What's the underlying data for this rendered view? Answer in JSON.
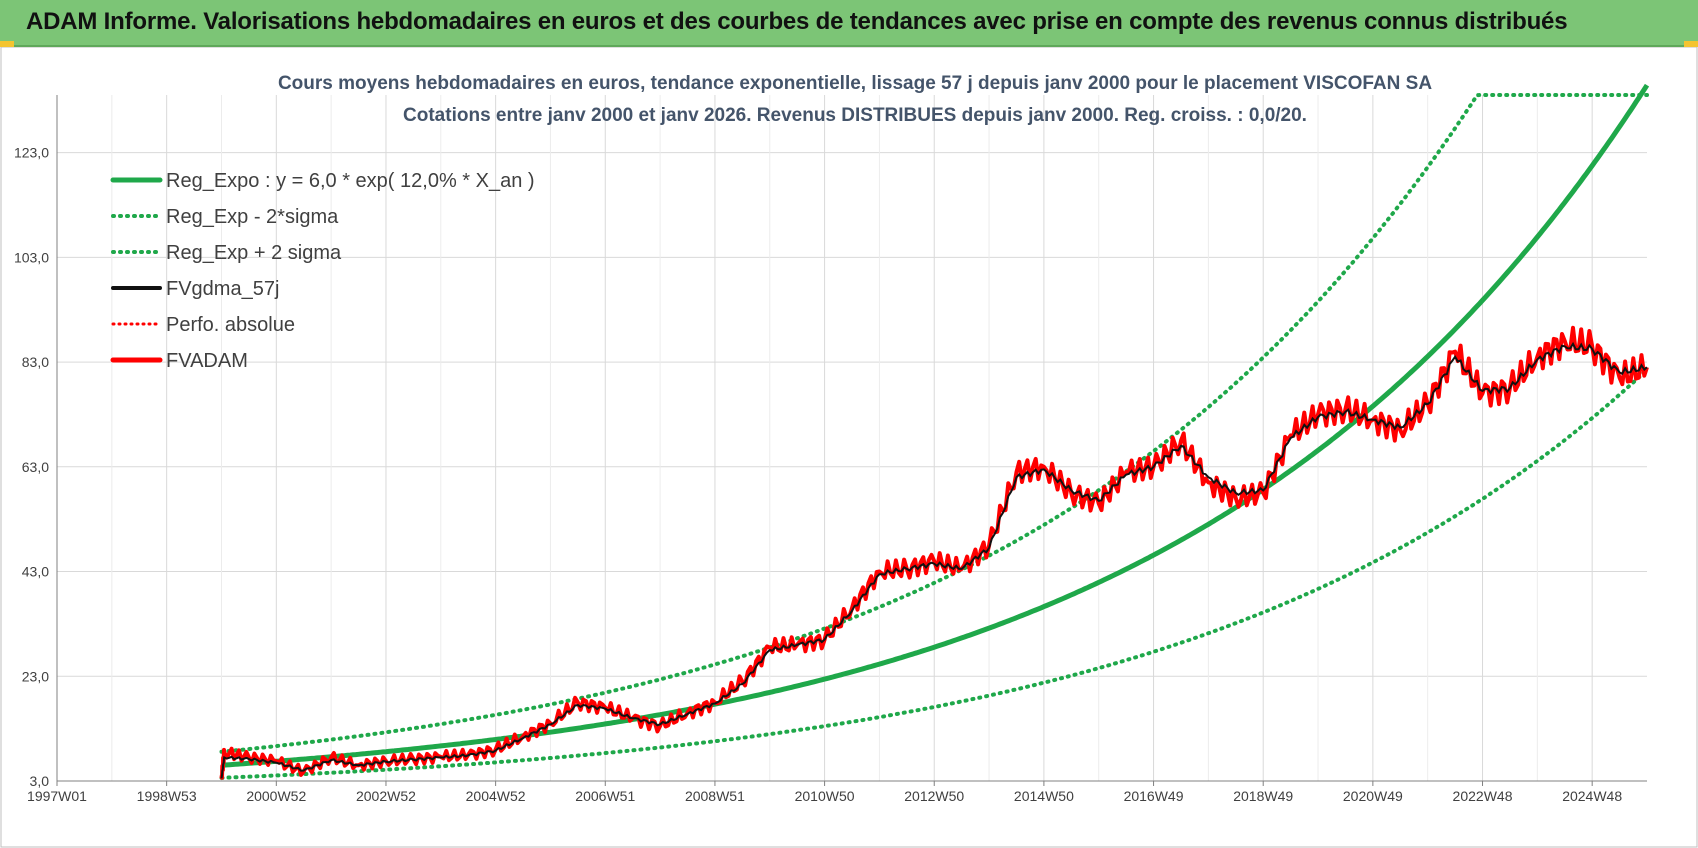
{
  "header": {
    "title": "ADAM Informe. Valorisations hebdomadaires en euros et des courbes de tendances avec prise en compte des revenus connus distribués"
  },
  "colors": {
    "banner": "#7cc576",
    "trend_green": "#1fa84a",
    "price_red": "#ff0000",
    "smooth_black": "#111111",
    "grid": "#d9d9d9"
  },
  "chart_data": {
    "type": "line",
    "title": [
      "Cours moyens hebdomadaires en euros, tendance exponentielle, lissage 57 j depuis janv 2000 pour le placement VISCOFAN SA",
      "Cotations entre janv 2000 et janv 2026. Revenus DISTRIBUES depuis janv 2000. Reg. croiss. : 0,0/20."
    ],
    "xlabel": "",
    "ylabel": "",
    "x_ticks": [
      "1997W01",
      "1998W53",
      "2000W52",
      "2002W52",
      "2004W52",
      "2006W51",
      "2008W51",
      "2010W50",
      "2012W50",
      "2014W50",
      "2016W49",
      "2018W49",
      "2020W49",
      "2022W48",
      "2024W48"
    ],
    "x_tick_years": [
      1997.0,
      1999.0,
      2001.0,
      2003.0,
      2005.0,
      2007.0,
      2009.0,
      2011.0,
      2013.0,
      2015.0,
      2017.0,
      2019.0,
      2021.0,
      2023.0,
      2025.0
    ],
    "xlim": [
      1997.0,
      2026.0
    ],
    "y_ticks": [
      "3,0",
      "23,0",
      "43,0",
      "63,0",
      "83,0",
      "103,0",
      "123,0"
    ],
    "ylim": [
      3,
      134
    ],
    "grid": true,
    "legend_position": "top-left",
    "legend": [
      {
        "label": "Reg_Expo : y = 6,0 * exp( 12,0% *  X_an )",
        "style": "solid-green"
      },
      {
        "label": "Reg_Exp - 2*sigma",
        "style": "dotted-green"
      },
      {
        "label": "Reg_Exp + 2 sigma",
        "style": "dotted-green"
      },
      {
        "label": "FVgdma_57j",
        "style": "solid-black"
      },
      {
        "label": "Perfo. absolue",
        "style": "dotted-red"
      },
      {
        "label": "FVADAM",
        "style": "solid-red"
      }
    ],
    "trend": {
      "start_year": 2000.0,
      "end_year": 2026.0,
      "a": 6.0,
      "rate": 0.12,
      "lower_factor": 0.6,
      "upper_factor": 1.43,
      "upper_cap": 134
    },
    "series": [
      {
        "name": "FVADAM",
        "x": [
          2000.0,
          2000.05,
          2000.5,
          2001.0,
          2001.5,
          2002.0,
          2002.5,
          2003.0,
          2003.5,
          2004.0,
          2004.5,
          2005.0,
          2005.5,
          2006.0,
          2006.5,
          2007.0,
          2007.5,
          2008.0,
          2008.5,
          2009.0,
          2009.5,
          2010.0,
          2010.5,
          2011.0,
          2011.5,
          2012.0,
          2012.5,
          2013.0,
          2013.5,
          2014.0,
          2014.5,
          2015.0,
          2015.5,
          2016.0,
          2016.5,
          2017.0,
          2017.5,
          2018.0,
          2018.5,
          2019.0,
          2019.5,
          2020.0,
          2020.5,
          2021.0,
          2021.5,
          2022.0,
          2022.5,
          2023.0,
          2023.5,
          2024.0,
          2024.5,
          2025.0,
          2025.5,
          2026.0
        ],
        "values": [
          3.5,
          8.5,
          7.5,
          6.8,
          4.8,
          7.5,
          6.0,
          6.8,
          7.2,
          7.6,
          8.0,
          9.0,
          11.5,
          14.0,
          18.0,
          17.0,
          15.0,
          13.5,
          16.0,
          18.0,
          22.0,
          28.5,
          29.0,
          30.0,
          36.0,
          43.0,
          43.5,
          45.0,
          43.5,
          48.0,
          62.0,
          63.0,
          58.0,
          56.0,
          62.0,
          63.0,
          68.0,
          60.0,
          57.0,
          58.0,
          69.0,
          73.0,
          74.0,
          72.0,
          70.0,
          75.0,
          85.0,
          77.0,
          78.0,
          84.0,
          87.0,
          86.0,
          80.0,
          82.0
        ]
      },
      {
        "name": "FVgdma_57j",
        "x": [
          2000.0,
          2000.05,
          2000.5,
          2001.0,
          2001.5,
          2002.0,
          2002.5,
          2003.0,
          2003.5,
          2004.0,
          2004.5,
          2005.0,
          2005.5,
          2006.0,
          2006.5,
          2007.0,
          2007.5,
          2008.0,
          2008.5,
          2009.0,
          2009.5,
          2010.0,
          2010.5,
          2011.0,
          2011.5,
          2012.0,
          2012.5,
          2013.0,
          2013.5,
          2014.0,
          2014.5,
          2015.0,
          2015.5,
          2016.0,
          2016.5,
          2017.0,
          2017.5,
          2018.0,
          2018.5,
          2019.0,
          2019.5,
          2020.0,
          2020.5,
          2021.0,
          2021.5,
          2022.0,
          2022.5,
          2023.0,
          2023.5,
          2024.0,
          2024.5,
          2025.0,
          2025.5,
          2026.0
        ],
        "values": [
          3.5,
          7.5,
          7.2,
          6.5,
          5.0,
          7.0,
          6.0,
          6.7,
          7.1,
          7.5,
          7.9,
          8.8,
          11.2,
          13.8,
          17.5,
          16.8,
          15.0,
          13.8,
          15.8,
          17.8,
          21.5,
          28.0,
          29.0,
          30.0,
          35.5,
          42.5,
          43.5,
          44.5,
          43.5,
          47.5,
          61.0,
          62.5,
          58.5,
          56.5,
          61.5,
          63.0,
          67.0,
          61.0,
          58.0,
          58.5,
          68.5,
          72.5,
          73.5,
          72.0,
          70.5,
          75.0,
          84.0,
          77.5,
          78.0,
          83.5,
          86.0,
          85.5,
          81.0,
          82.0
        ]
      }
    ]
  }
}
